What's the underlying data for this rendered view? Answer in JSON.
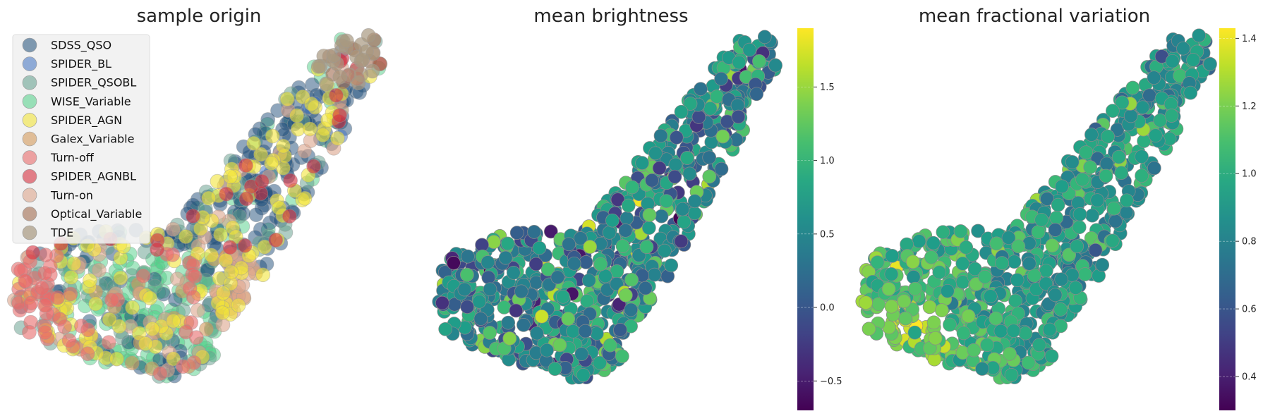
{
  "chart_data": [
    {
      "type": "scatter",
      "title": "sample origin",
      "xlabel": "",
      "ylabel": "",
      "grid": false,
      "axes_visible": false,
      "legend_placement": "top-left",
      "marker": "circle",
      "series": [
        {
          "name": "SDSS_QSO",
          "color": "#1f4e79",
          "alpha": 0.5,
          "region": "whole embedding, densest in upper arm"
        },
        {
          "name": "SPIDER_BL",
          "color": "#3d6fbf",
          "alpha": 0.5,
          "region": "upper arm"
        },
        {
          "name": "SPIDER_QSOBL",
          "color": "#5f9c8a",
          "alpha": 0.5,
          "region": "upper arm"
        },
        {
          "name": "WISE_Variable",
          "color": "#4fcf87",
          "alpha": 0.5,
          "region": "lower left lobe"
        },
        {
          "name": "SPIDER_AGN",
          "color": "#f2e43a",
          "alpha": 0.6,
          "region": "upper arm and center"
        },
        {
          "name": "Galex_Variable",
          "color": "#d4995a",
          "alpha": 0.6,
          "region": "lower right lobe"
        },
        {
          "name": "Turn-off",
          "color": "#e76a6a",
          "alpha": 0.6,
          "region": "left tip and center"
        },
        {
          "name": "SPIDER_AGNBL",
          "color": "#d63040",
          "alpha": 0.6,
          "region": "upper arm and center"
        },
        {
          "name": "Turn-on",
          "color": "#dca58c",
          "alpha": 0.6,
          "region": "scattered"
        },
        {
          "name": "Optical_Variable",
          "color": "#a06a4e",
          "alpha": 0.6,
          "region": "top tip"
        },
        {
          "name": "TDE",
          "color": "#a89880",
          "alpha": 0.7,
          "region": "top tip"
        }
      ]
    },
    {
      "type": "scatter",
      "title": "mean brightness",
      "xlabel": "",
      "ylabel": "",
      "grid": false,
      "axes_visible": false,
      "colormap": "viridis",
      "colorbar": {
        "range": [
          -0.7,
          1.9
        ],
        "ticks": [
          -0.5,
          0.0,
          0.5,
          1.0,
          1.5
        ],
        "tick_labels": [
          "−0.5",
          "0.0",
          "0.5",
          "1.0",
          "1.5"
        ]
      },
      "value_distribution": {
        "typical": 0.55,
        "spread": 0.45,
        "min": -0.7,
        "max": 1.9
      }
    },
    {
      "type": "scatter",
      "title": "mean fractional variation",
      "xlabel": "",
      "ylabel": "",
      "grid": false,
      "axes_visible": false,
      "colormap": "viridis",
      "colorbar": {
        "range": [
          0.3,
          1.43
        ],
        "ticks": [
          0.4,
          0.6,
          0.8,
          1.0,
          1.2,
          1.4
        ],
        "tick_labels": [
          "0.4",
          "0.6",
          "0.8",
          "1.0",
          "1.2",
          "1.4"
        ]
      },
      "value_distribution": {
        "trend": "higher in lower-left lobe (~1.2), lower in upper arm (~0.9)",
        "min": 0.3,
        "max": 1.43
      }
    }
  ]
}
